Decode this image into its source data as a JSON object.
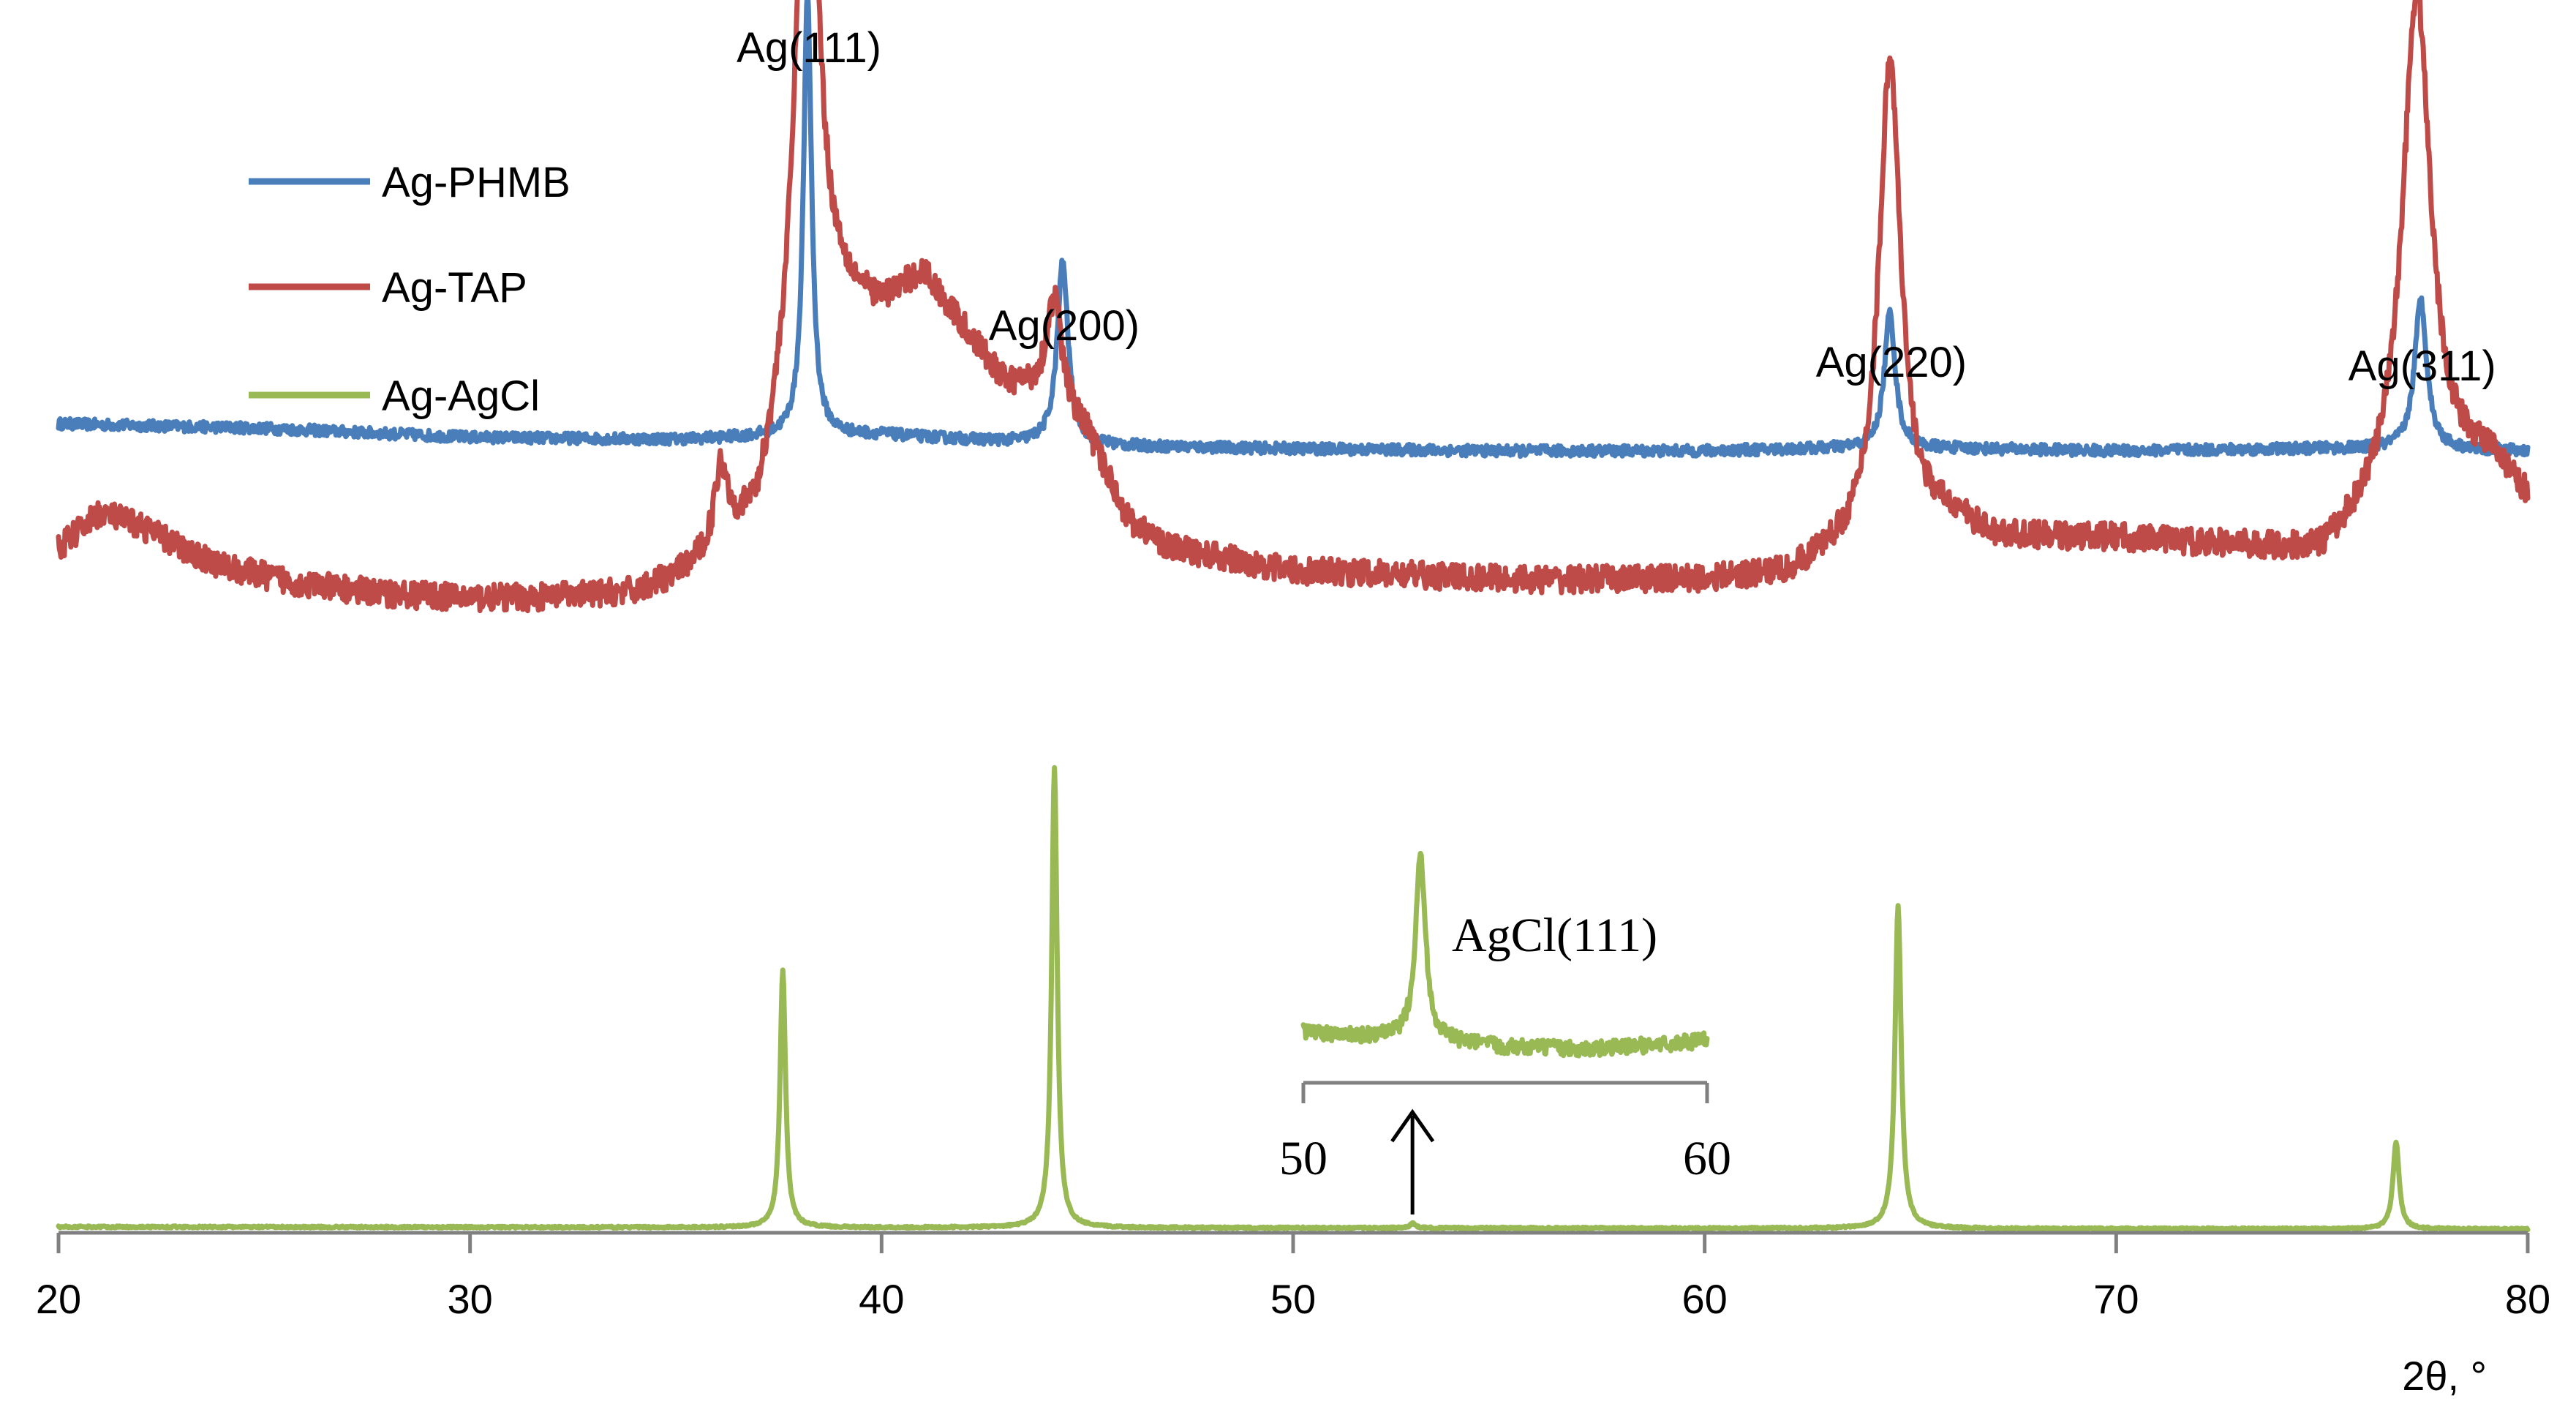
{
  "chart_data": {
    "type": "line",
    "xlabel": "2θ, °",
    "xlim": [
      20,
      80
    ],
    "xticks": [
      20,
      30,
      40,
      50,
      60,
      70,
      80
    ],
    "legend": {
      "placement": "top-left",
      "entries": [
        "Ag-PHMB",
        "Ag-TAP",
        "Ag-AgCl"
      ]
    },
    "annotations": [
      {
        "text": "Ag(111)",
        "x": 38.2
      },
      {
        "text": "Ag(200)",
        "x": 44.4
      },
      {
        "text": "Ag(220)",
        "x": 64.5
      },
      {
        "text": "Ag(311)",
        "x": 77.4
      }
    ],
    "colors": {
      "Ag-PHMB": "#4a7ebb",
      "Ag-TAP": "#be4b48",
      "Ag-AgCl": "#98b954"
    },
    "series": [
      {
        "name": "Ag-PHMB",
        "color": "#4a7ebb",
        "baseline": [
          [
            20,
            0.34
          ],
          [
            25,
            0.33
          ],
          [
            30,
            0.31
          ],
          [
            35,
            0.305
          ],
          [
            37,
            0.31
          ],
          [
            40,
            0.315
          ],
          [
            43,
            0.3
          ],
          [
            46,
            0.29
          ],
          [
            50,
            0.285
          ],
          [
            55,
            0.28
          ],
          [
            60,
            0.28
          ],
          [
            63,
            0.285
          ],
          [
            66,
            0.285
          ],
          [
            70,
            0.28
          ],
          [
            75,
            0.285
          ],
          [
            80,
            0.28
          ]
        ],
        "peaks": [
          [
            38.2,
            0.97,
            0.12
          ],
          [
            44.4,
            0.4,
            0.16
          ],
          [
            64.5,
            0.3,
            0.16
          ],
          [
            77.4,
            0.33,
            0.18
          ]
        ],
        "noise": 0.012
      },
      {
        "name": "Ag-TAP",
        "color": "#be4b48",
        "baseline": [
          [
            20,
            0.5
          ],
          [
            21,
            0.58
          ],
          [
            22,
            0.55
          ],
          [
            23,
            0.5
          ],
          [
            24,
            0.46
          ],
          [
            26,
            0.42
          ],
          [
            28,
            0.4
          ],
          [
            30,
            0.39
          ],
          [
            32,
            0.39
          ],
          [
            34,
            0.4
          ],
          [
            35,
            0.43
          ],
          [
            36,
            0.48
          ],
          [
            37,
            0.56
          ],
          [
            38,
            0.9
          ],
          [
            39,
            1.02
          ],
          [
            40,
            1.02
          ],
          [
            41,
            1.1
          ],
          [
            42,
            0.98
          ],
          [
            43,
            0.86
          ],
          [
            44,
            0.84
          ],
          [
            45,
            0.75
          ],
          [
            46,
            0.56
          ],
          [
            47,
            0.5
          ],
          [
            50,
            0.45
          ],
          [
            53,
            0.44
          ],
          [
            56,
            0.43
          ],
          [
            60,
            0.43
          ],
          [
            62,
            0.44
          ],
          [
            63,
            0.48
          ],
          [
            66,
            0.56
          ],
          [
            67,
            0.52
          ],
          [
            70,
            0.52
          ],
          [
            73,
            0.5
          ],
          [
            75,
            0.48
          ],
          [
            76,
            0.55
          ],
          [
            79,
            0.68
          ],
          [
            80,
            0.6
          ]
        ],
        "peaks": [
          [
            36.1,
            0.18,
            0.2
          ],
          [
            38.2,
            1.42,
            0.3
          ],
          [
            44.2,
            0.23,
            0.22
          ],
          [
            64.5,
            1.06,
            0.32
          ],
          [
            77.3,
            1.12,
            0.42
          ]
        ],
        "noise": 0.03
      },
      {
        "name": "Ag-AgCl",
        "color": "#98b954",
        "baseline": [
          [
            20,
            0.005
          ],
          [
            80,
            0.0
          ]
        ],
        "peaks": [
          [
            37.6,
            0.56,
            0.08
          ],
          [
            44.2,
            1.0,
            0.08
          ],
          [
            52.9,
            0.01,
            0.08
          ],
          [
            64.7,
            0.7,
            0.09
          ],
          [
            76.8,
            0.19,
            0.09
          ]
        ],
        "noise": 0.002
      }
    ],
    "inset": {
      "xlim": [
        50,
        60
      ],
      "xticks": [
        50,
        60
      ],
      "label": "AgCl(111)",
      "baseline": [
        [
          50,
          0.1
        ],
        [
          51,
          0.08
        ],
        [
          52,
          0.07
        ],
        [
          53.5,
          0.05
        ],
        [
          55,
          0.03
        ],
        [
          57,
          0.02
        ],
        [
          58,
          0.03
        ],
        [
          60,
          0.06
        ]
      ],
      "peaks": [
        [
          52.9,
          0.85,
          0.15
        ]
      ],
      "noise": 0.035
    }
  }
}
